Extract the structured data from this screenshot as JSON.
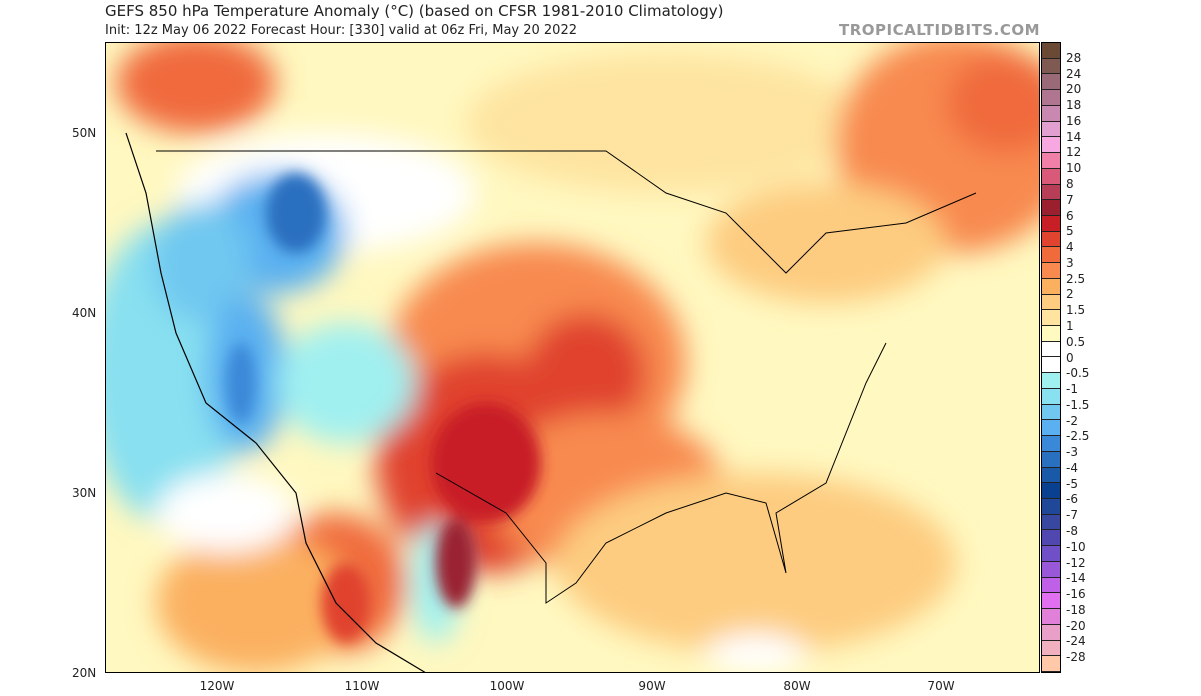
{
  "header": {
    "title": "GEFS 850 hPa Temperature Anomaly (°C) (based on CFSR 1981-2010 Climatology)",
    "subtitle": "Init: 12z May 06 2022   Forecast Hour: [330]   valid at 06z Fri, May 20 2022",
    "brand": "TROPICALTIDBITS.COM"
  },
  "map": {
    "region": "Continental United States, Mexico, southern Canada",
    "lat_labels": [
      "50N",
      "40N",
      "30N",
      "20N"
    ],
    "lon_labels": [
      "120W",
      "110W",
      "100W",
      "90W",
      "80W",
      "70W"
    ],
    "colors": {
      "warm_max": "#c81e25",
      "warm": "#f06a3c",
      "mild": "#fdcc80",
      "near_zero": "#ffffff",
      "cool": "#70c8f0",
      "cold": "#2a70c0"
    }
  },
  "colorbar": {
    "labels": [
      "28",
      "24",
      "20",
      "18",
      "16",
      "14",
      "12",
      "10",
      "8",
      "7",
      "6",
      "5",
      "4",
      "3",
      "2.5",
      "2",
      "1.5",
      "1",
      "0.5",
      "0",
      "-0.5",
      "-1",
      "-1.5",
      "-2",
      "-2.5",
      "-3",
      "-4",
      "-5",
      "-6",
      "-7",
      "-8",
      "-10",
      "-12",
      "-14",
      "-16",
      "-18",
      "-20",
      "-24",
      "-28"
    ],
    "colors": [
      "#6b4a35",
      "#7f5a52",
      "#9a6a78",
      "#b07590",
      "#c888b0",
      "#e2a0d0",
      "#f8a8e0",
      "#f080a8",
      "#d85a78",
      "#b83e58",
      "#9a2030",
      "#c81e25",
      "#e0432e",
      "#f06a3c",
      "#f88a50",
      "#fbb060",
      "#fdcc80",
      "#fee4a0",
      "#fffac0",
      "#ffffff",
      "#ffffff",
      "#a0f0f0",
      "#88e0f0",
      "#70c8f0",
      "#5ab0f0",
      "#3a88d8",
      "#2a70c0",
      "#1a58a8",
      "#0a4090",
      "#204898",
      "#3848a0",
      "#5048b0",
      "#7050c8",
      "#9858d8",
      "#c060e8",
      "#e070f0",
      "#e080d8",
      "#e8a0c8",
      "#f0b0c0",
      "#ffc8a8"
    ]
  }
}
